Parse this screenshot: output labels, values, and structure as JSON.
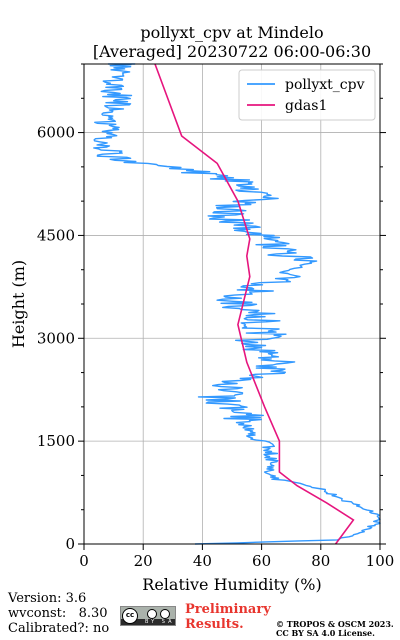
{
  "chart_data": {
    "type": "line",
    "title": "pollyxt_cpv at Mindelo",
    "subtitle": "[Averaged] 20230722 06:00-06:30",
    "xlabel": "Relative Humidity (%)",
    "ylabel": "Height (m)",
    "xlim": [
      0,
      100
    ],
    "ylim": [
      0,
      7000
    ],
    "xticks": [
      0,
      20,
      40,
      60,
      80,
      100
    ],
    "yticks": [
      0,
      1500,
      3000,
      4500,
      6000
    ],
    "grid": true,
    "legend_position": "top-right",
    "series": [
      {
        "name": "pollyxt_cpv",
        "color": "#3399ff",
        "style": "noisy-profile",
        "x": [
          39,
          85,
          90,
          95,
          99,
          99,
          96,
          90,
          85,
          80,
          72,
          64,
          61,
          64,
          63,
          62,
          58,
          56,
          54,
          54,
          54,
          48,
          45,
          49,
          46,
          60,
          62,
          65,
          63,
          60,
          56,
          62,
          60,
          60,
          58,
          53,
          50,
          55,
          60,
          65,
          68,
          71,
          72,
          66,
          64,
          62,
          56,
          53,
          49,
          48,
          52,
          60,
          58,
          55,
          47,
          34,
          18,
          9,
          8,
          8,
          8,
          7,
          8,
          10,
          12,
          12,
          11,
          10,
          9,
          10,
          12,
          13,
          13,
          14
        ],
        "y": [
          0,
          60,
          120,
          200,
          300,
          400,
          500,
          600,
          700,
          800,
          900,
          950,
          1050,
          1150,
          1300,
          1450,
          1550,
          1650,
          1750,
          1850,
          1950,
          2050,
          2150,
          2250,
          2350,
          2450,
          2550,
          2650,
          2750,
          2850,
          2950,
          3050,
          3150,
          3250,
          3350,
          3450,
          3550,
          3650,
          3750,
          3850,
          3950,
          4050,
          4150,
          4250,
          4350,
          4450,
          4550,
          4650,
          4750,
          4850,
          4950,
          5050,
          5150,
          5250,
          5350,
          5450,
          5550,
          5650,
          5750,
          5850,
          5950,
          6050,
          6150,
          6250,
          6350,
          6450,
          6550,
          6650,
          6750,
          6850,
          6950,
          7050,
          7150,
          7250
        ]
      },
      {
        "name": "gdas1",
        "color": "#e6157e",
        "x": [
          85,
          91,
          82,
          72,
          66,
          66,
          61,
          55,
          52,
          56,
          55,
          56,
          52,
          45,
          33,
          24
        ],
        "y": [
          0,
          350,
          600,
          850,
          1050,
          1500,
          2000,
          2650,
          3200,
          3900,
          4200,
          4450,
          5000,
          5550,
          5950,
          7000
        ]
      }
    ]
  },
  "footer": {
    "version": "Version: 3.6",
    "wvconst": "wvconst:   8.30",
    "calibrated": "Calibrated?: no",
    "cc_label": "cc",
    "cc_by_sa": "BY  SA",
    "preliminary_line1": "Preliminary",
    "preliminary_line2": "Results.",
    "copyright_line1": "© TROPOS & OSCM 2023.",
    "copyright_line2": "CC BY SA 4.0 License."
  }
}
